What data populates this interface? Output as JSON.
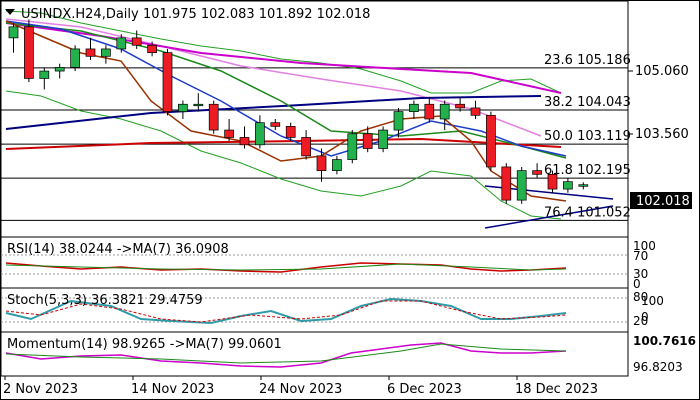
{
  "header": {
    "symbol": "USINDX.H24,Daily",
    "ohlc": "101.975 102.083 101.892 102.018"
  },
  "price_axis": {
    "labels": [
      "105.060",
      "103.560"
    ],
    "current_price": "102.018"
  },
  "fib_levels": [
    {
      "label": "23.6 105.186",
      "value": 105.186
    },
    {
      "label": "38.2 104.043",
      "value": 104.043
    },
    {
      "label": "50.0 103.119",
      "value": 103.119
    },
    {
      "label": "61.8 102.195",
      "value": 102.195
    },
    {
      "label": "76.4 101.052",
      "value": 101.052
    }
  ],
  "indicators": {
    "rsi": {
      "label": "RSI(14) 38.0244  ->MA(7) 36.0908",
      "axis": [
        "100",
        "70",
        "30",
        "0"
      ]
    },
    "stoch": {
      "label": "Stoch(5,3,3) 36.3821 29.4759",
      "axis": [
        "80",
        "100",
        "20",
        "0"
      ]
    },
    "momentum": {
      "label": "Momentum(14) 98.9265  ->MA(7) 99.0601",
      "axis": [
        "100.7616",
        "96.8203"
      ]
    }
  },
  "date_axis": [
    "2 Nov 2023",
    "14 Nov 2023",
    "24 Nov 2023",
    "6 Dec 2023",
    "18 Dec 2023"
  ],
  "colors": {
    "bull": "#22b14c",
    "bear": "#ed1c24",
    "ma_magenta": "#cc00cc",
    "ma_navy": "#000080",
    "ma_red": "#cc0000",
    "ma_green": "#1a8a1a",
    "ma_blue": "#1e3cc8",
    "ma_brown": "#993300",
    "bollinger": "#22a022",
    "pink": "#e080e0",
    "stoch_main": "#2e9ca8",
    "momentum": "#cc00cc"
  },
  "chart_data": {
    "type": "candlestick",
    "series": [
      {
        "values": [
          [
            106.0,
            106.4,
            105.6,
            106.3
          ],
          [
            106.3,
            106.5,
            104.8,
            104.9
          ],
          [
            104.9,
            105.2,
            104.6,
            105.1
          ],
          [
            105.1,
            105.3,
            104.9,
            105.2
          ],
          [
            105.2,
            105.8,
            105.1,
            105.7
          ],
          [
            105.7,
            106.0,
            105.4,
            105.5
          ],
          [
            105.5,
            105.8,
            105.3,
            105.7
          ],
          [
            105.7,
            106.1,
            105.6,
            106.0
          ],
          [
            106.0,
            106.2,
            105.7,
            105.8
          ],
          [
            105.8,
            105.9,
            105.5,
            105.6
          ],
          [
            105.6,
            105.7,
            103.9,
            104.0
          ],
          [
            104.0,
            104.3,
            103.8,
            104.2
          ],
          [
            104.2,
            104.5,
            104.0,
            104.2
          ],
          [
            104.2,
            104.3,
            103.4,
            103.5
          ],
          [
            103.5,
            103.8,
            103.2,
            103.3
          ],
          [
            103.3,
            103.6,
            103.0,
            103.1
          ],
          [
            103.1,
            103.9,
            103.0,
            103.7
          ],
          [
            103.7,
            103.8,
            103.5,
            103.6
          ],
          [
            103.6,
            103.7,
            103.2,
            103.3
          ],
          [
            103.3,
            103.5,
            102.7,
            102.8
          ],
          [
            102.8,
            103.0,
            102.1,
            102.4
          ],
          [
            102.4,
            102.8,
            102.3,
            102.7
          ],
          [
            102.7,
            103.5,
            102.6,
            103.4
          ],
          [
            103.4,
            103.6,
            102.9,
            103.0
          ],
          [
            103.0,
            103.6,
            102.9,
            103.5
          ],
          [
            103.5,
            104.1,
            103.3,
            104.0
          ],
          [
            104.0,
            104.3,
            103.8,
            104.2
          ],
          [
            104.2,
            104.4,
            103.7,
            103.8
          ],
          [
            103.8,
            104.3,
            103.5,
            104.2
          ],
          [
            104.2,
            104.4,
            104.0,
            104.1
          ],
          [
            104.1,
            104.3,
            103.8,
            103.9
          ],
          [
            103.9,
            104.0,
            102.4,
            102.5
          ],
          [
            102.5,
            102.6,
            101.5,
            101.6
          ],
          [
            101.6,
            102.5,
            101.5,
            102.4
          ],
          [
            102.4,
            102.6,
            102.2,
            102.3
          ],
          [
            102.3,
            102.4,
            101.8,
            101.9
          ],
          [
            101.9,
            102.2,
            101.8,
            102.1
          ],
          [
            101.975,
            102.083,
            101.892,
            102.018
          ]
        ]
      }
    ]
  }
}
